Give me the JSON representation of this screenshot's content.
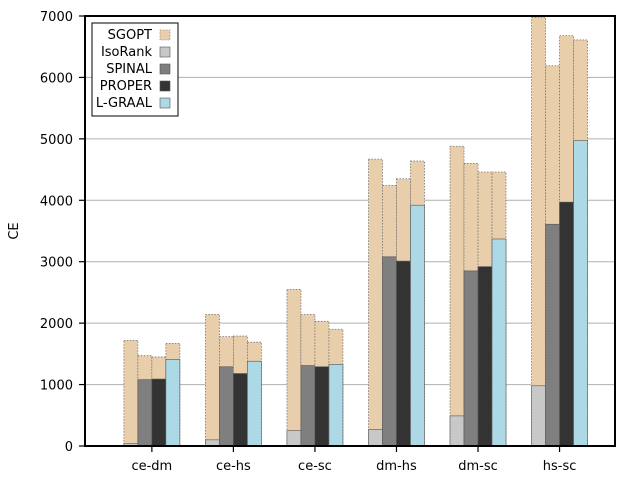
{
  "chart_data": {
    "type": "bar",
    "title": "",
    "xlabel": "",
    "ylabel": "CE",
    "ylim": [
      0,
      7000
    ],
    "yticks": [
      0,
      1000,
      2000,
      3000,
      4000,
      5000,
      6000,
      7000
    ],
    "grid": true,
    "legend_position": "top-left",
    "categories": [
      "ce-dm",
      "ce-hs",
      "ce-sc",
      "dm-hs",
      "dm-sc",
      "hs-sc"
    ],
    "series": [
      {
        "name": "IsoRank",
        "color": "#c8c8c8",
        "values": [
          40,
          100,
          250,
          270,
          490,
          980
        ],
        "sgopt": [
          1720,
          2140,
          2550,
          4670,
          4880,
          6980
        ]
      },
      {
        "name": "SPINAL",
        "color": "#7f7f7f",
        "values": [
          1080,
          1290,
          1310,
          3080,
          2850,
          3610
        ],
        "sgopt": [
          1470,
          1780,
          2140,
          4240,
          4600,
          6190
        ]
      },
      {
        "name": "PROPER",
        "color": "#333333",
        "values": [
          1090,
          1180,
          1290,
          3010,
          2920,
          3970
        ],
        "sgopt": [
          1450,
          1790,
          2030,
          4350,
          4460,
          6680
        ]
      },
      {
        "name": "L-GRAAL",
        "color": "#add8e6",
        "values": [
          1410,
          1380,
          1330,
          3920,
          3370,
          4970
        ],
        "sgopt": [
          1670,
          1690,
          1900,
          4640,
          4460,
          6610
        ]
      }
    ],
    "legend": [
      {
        "label": "SGOPT",
        "color": "#e8ceaa"
      },
      {
        "label": "IsoRank",
        "color": "#c8c8c8"
      },
      {
        "label": "SPINAL",
        "color": "#7f7f7f"
      },
      {
        "label": "PROPER",
        "color": "#333333"
      },
      {
        "label": "L-GRAAL",
        "color": "#add8e6"
      }
    ],
    "sgopt_color": "#e8ceaa"
  }
}
